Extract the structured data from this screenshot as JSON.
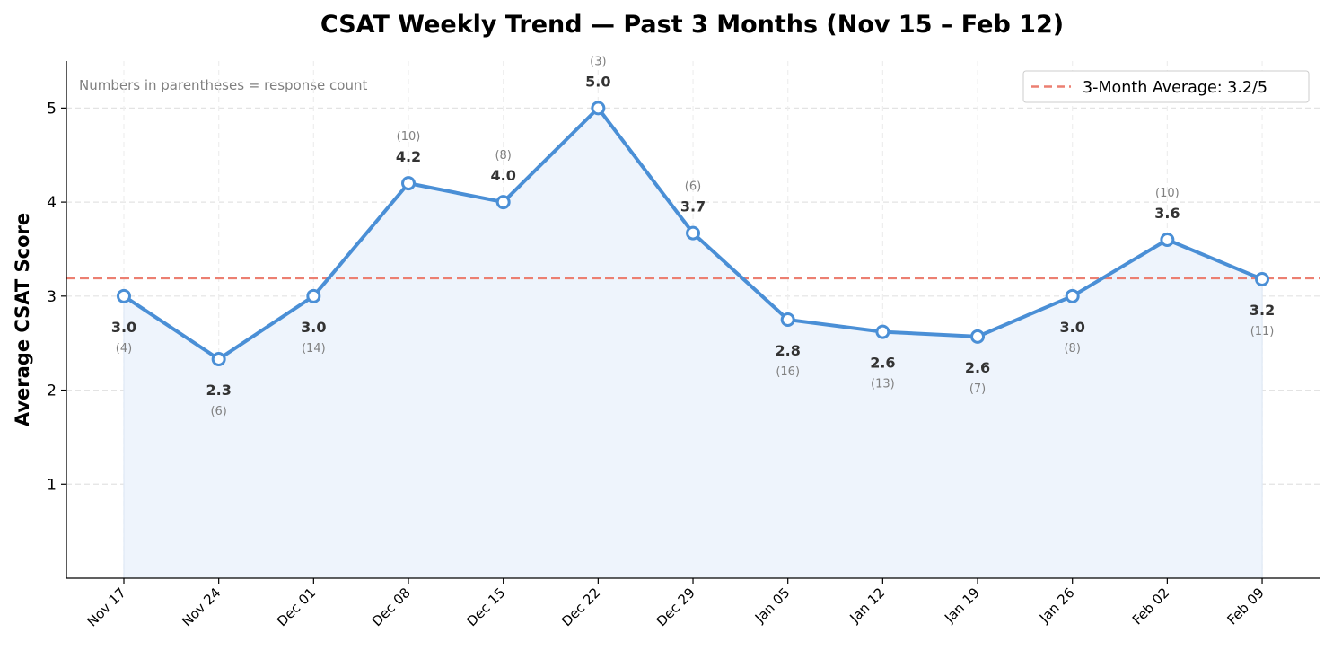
{
  "chart_data": {
    "type": "line",
    "title": "CSAT Weekly Trend — Past 3 Months (Nov 15 – Feb 12)",
    "xlabel": "",
    "ylabel": "Average CSAT Score",
    "ylim": [
      0,
      5.5
    ],
    "yticks": [
      1,
      2,
      3,
      4,
      5
    ],
    "grid": true,
    "categories": [
      "Nov 17",
      "Nov 24",
      "Dec 01",
      "Dec 08",
      "Dec 15",
      "Dec 22",
      "Dec 29",
      "Jan 05",
      "Jan 12",
      "Jan 19",
      "Jan 26",
      "Feb 02",
      "Feb 09"
    ],
    "values": [
      3.0,
      2.33,
      3.0,
      4.2,
      4.0,
      5.0,
      3.67,
      2.75,
      2.62,
      2.57,
      3.0,
      3.6,
      3.18
    ],
    "value_labels": [
      "3.0",
      "2.3",
      "3.0",
      "4.2",
      "4.0",
      "5.0",
      "3.7",
      "2.8",
      "2.6",
      "2.6",
      "3.0",
      "3.6",
      "3.2"
    ],
    "response_counts": [
      "(4)",
      "(6)",
      "(14)",
      "(10)",
      "(8)",
      "(3)",
      "(6)",
      "(16)",
      "(13)",
      "(7)",
      "(8)",
      "(10)",
      "(11)"
    ],
    "label_positions": [
      "below",
      "below",
      "below",
      "above",
      "above",
      "above",
      "above",
      "below",
      "below",
      "below",
      "below",
      "above",
      "below"
    ],
    "average": {
      "value": 3.19,
      "label": "3-Month Average: 3.2/5",
      "color": "#ec7f71"
    },
    "annotation": "Numbers in parentheses = response count",
    "legend_placement": "top-right",
    "colors": {
      "line": "#4a8fd6",
      "fill": "#eef4fc",
      "marker_fill": "#ffffff",
      "average": "#ec7f71"
    }
  }
}
